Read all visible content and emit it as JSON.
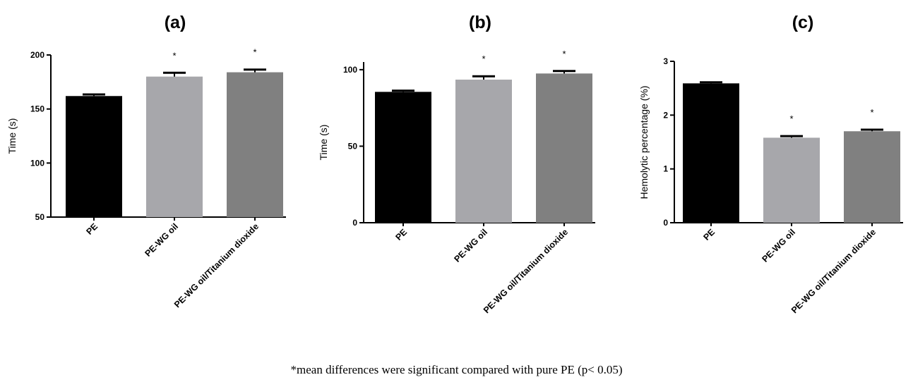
{
  "chart_data": [
    {
      "type": "bar",
      "panel": "(a)",
      "title": "(a)",
      "ylabel": "Time (s)",
      "ylim": [
        50,
        200
      ],
      "yticks": [
        50,
        100,
        150,
        200
      ],
      "categories": [
        "PE",
        "PE-WG oil",
        "PE-WG oil/Titanium dioxide"
      ],
      "values": [
        162,
        180,
        184
      ],
      "errors": [
        1.5,
        3.5,
        2.5
      ],
      "significance": [
        "",
        "*",
        "*"
      ],
      "colors": [
        "#000000",
        "#a7a7ab",
        "#808080"
      ]
    },
    {
      "type": "bar",
      "panel": "(b)",
      "title": "(b)",
      "ylabel": "Time (s)",
      "ylim": [
        0,
        105
      ],
      "yticks": [
        0,
        50,
        100
      ],
      "categories": [
        "PE",
        "PE-WG oil",
        "PE-WG oil/Titanium dioxide"
      ],
      "values": [
        85.5,
        93.5,
        97.5
      ],
      "errors": [
        0.8,
        2.2,
        1.6
      ],
      "significance": [
        "",
        "*",
        "*"
      ],
      "colors": [
        "#000000",
        "#a7a7ab",
        "#808080"
      ]
    },
    {
      "type": "bar",
      "panel": "(c)",
      "title": "(c)",
      "ylabel": "Hemolytic percentage (%)",
      "ylim": [
        0,
        3
      ],
      "yticks": [
        0,
        1,
        2,
        3
      ],
      "categories": [
        "PE",
        "PE-WG oil",
        "PE-WG oil/Titanium dioxide"
      ],
      "values": [
        2.59,
        1.58,
        1.7
      ],
      "errors": [
        0.02,
        0.03,
        0.03
      ],
      "significance": [
        "",
        "*",
        "*"
      ],
      "colors": [
        "#000000",
        "#a7a7ab",
        "#808080"
      ]
    }
  ],
  "footnote": "*mean differences were significant compared with pure PE (p< 0.05)"
}
